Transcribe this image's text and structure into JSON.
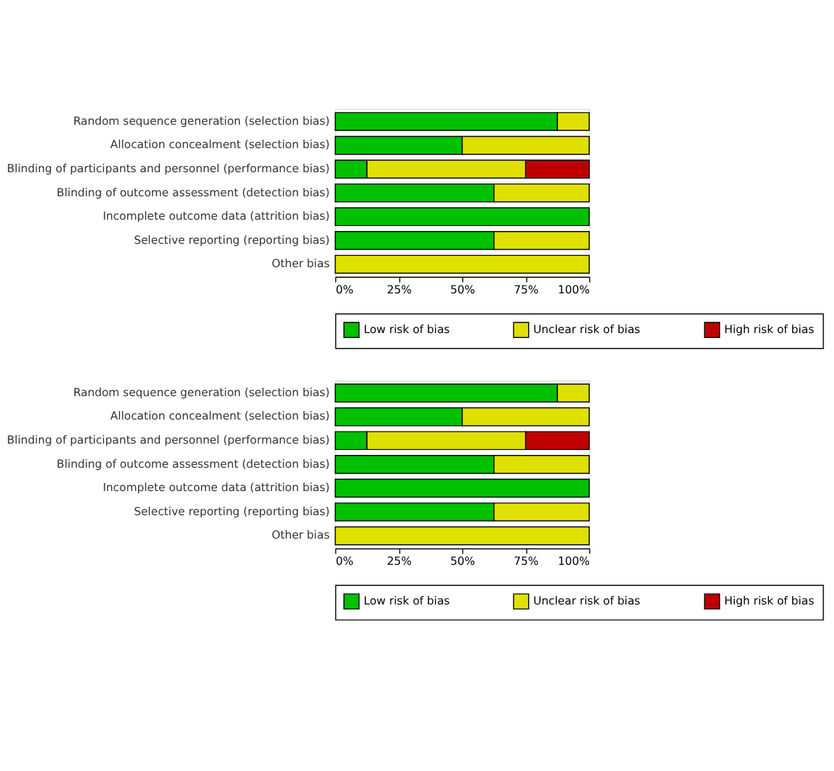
{
  "chart_data": [
    {
      "type": "bar",
      "orientation": "horizontal",
      "stacked": true,
      "categories": [
        "Random sequence generation (selection bias)",
        "Allocation concealment (selection bias)",
        "Blinding of participants and personnel (performance bias)",
        "Blinding of outcome assessment (detection bias)",
        "Incomplete outcome data (attrition bias)",
        "Selective reporting (reporting bias)",
        "Other bias"
      ],
      "series": [
        {
          "name": "Low risk of bias",
          "color": "#00c000",
          "values": [
            87.5,
            50,
            12.5,
            62.5,
            100,
            62.5,
            0
          ]
        },
        {
          "name": "Unclear risk of bias",
          "color": "#e0e000",
          "values": [
            12.5,
            50,
            62.5,
            37.5,
            0,
            37.5,
            100
          ]
        },
        {
          "name": "High risk of bias",
          "color": "#c00000",
          "values": [
            0,
            0,
            25,
            0,
            0,
            0,
            0
          ]
        }
      ],
      "xlim": [
        0,
        100
      ],
      "xticks": [
        {
          "value": 0,
          "label": "0%"
        },
        {
          "value": 25,
          "label": "25%"
        },
        {
          "value": 50,
          "label": "50%"
        },
        {
          "value": 75,
          "label": "75%"
        },
        {
          "value": 100,
          "label": "100%"
        }
      ],
      "grid": false,
      "legend": "bottom"
    },
    {
      "type": "bar",
      "orientation": "horizontal",
      "stacked": true,
      "categories": [
        "Random sequence generation (selection bias)",
        "Allocation concealment (selection bias)",
        "Blinding of participants and personnel (performance bias)",
        "Blinding of outcome assessment (detection bias)",
        "Incomplete outcome data (attrition bias)",
        "Selective reporting (reporting bias)",
        "Other bias"
      ],
      "series": [
        {
          "name": "Low risk of bias",
          "color": "#00c000",
          "values": [
            87.5,
            50,
            12.5,
            62.5,
            100,
            62.5,
            0
          ]
        },
        {
          "name": "Unclear risk of bias",
          "color": "#e0e000",
          "values": [
            12.5,
            50,
            62.5,
            37.5,
            0,
            37.5,
            100
          ]
        },
        {
          "name": "High risk of bias",
          "color": "#c00000",
          "values": [
            0,
            0,
            25,
            0,
            0,
            0,
            0
          ]
        }
      ],
      "xlim": [
        0,
        100
      ],
      "xticks": [
        {
          "value": 0,
          "label": "0%"
        },
        {
          "value": 25,
          "label": "25%"
        },
        {
          "value": 50,
          "label": "50%"
        },
        {
          "value": 75,
          "label": "75%"
        },
        {
          "value": 100,
          "label": "100%"
        }
      ],
      "grid": false,
      "legend": "bottom"
    }
  ]
}
